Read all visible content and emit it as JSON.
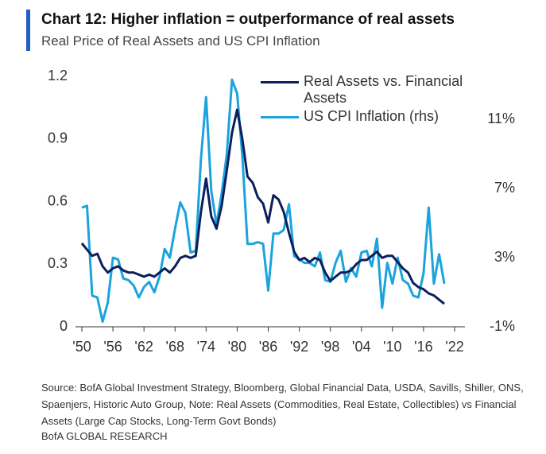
{
  "chart_data": {
    "type": "line",
    "title": "Chart 12: Higher inflation = outperformance of real assets",
    "subtitle": "Real Price of Real Assets and US CPI Inflation",
    "source": "Source: BofA Global Investment Strategy, Bloomberg, Global Financial Data, USDA, Savills, Shiller, ONS, Spaenjers, Historic Auto Group, Note: Real Assets (Commodities, Real Estate, Collectibles) vs Financial Assets (Large Cap Stocks, Long-Term Govt Bonds)",
    "footer": "BofA GLOBAL RESEARCH",
    "x": [
      1950,
      1951,
      1952,
      1953,
      1954,
      1955,
      1956,
      1957,
      1958,
      1959,
      1960,
      1961,
      1962,
      1963,
      1964,
      1965,
      1966,
      1967,
      1968,
      1969,
      1970,
      1971,
      1972,
      1973,
      1974,
      1975,
      1976,
      1977,
      1978,
      1979,
      1980,
      1981,
      1982,
      1983,
      1984,
      1985,
      1986,
      1987,
      1988,
      1989,
      1990,
      1991,
      1992,
      1993,
      1994,
      1995,
      1996,
      1997,
      1998,
      1999,
      2000,
      2001,
      2002,
      2003,
      2004,
      2005,
      2006,
      2007,
      2008,
      2009,
      2010,
      2011,
      2012,
      2013,
      2014,
      2015,
      2016,
      2017,
      2018,
      2019,
      2020
    ],
    "series": [
      {
        "name": "Real Assets vs. Financial Assets",
        "color": "#0b1f5c",
        "values": [
          0.4,
          0.37,
          0.34,
          0.35,
          0.29,
          0.26,
          0.28,
          0.29,
          0.27,
          0.26,
          0.26,
          0.25,
          0.24,
          0.25,
          0.24,
          0.26,
          0.28,
          0.26,
          0.29,
          0.33,
          0.34,
          0.33,
          0.34,
          0.55,
          0.71,
          0.53,
          0.47,
          0.58,
          0.75,
          0.93,
          1.04,
          0.9,
          0.72,
          0.69,
          0.62,
          0.59,
          0.5,
          0.63,
          0.61,
          0.55,
          0.45,
          0.36,
          0.32,
          0.33,
          0.31,
          0.33,
          0.32,
          0.26,
          0.22,
          0.24,
          0.26,
          0.26,
          0.27,
          0.3,
          0.32,
          0.32,
          0.34,
          0.36,
          0.33,
          0.34,
          0.34,
          0.31,
          0.28,
          0.26,
          0.21,
          0.19,
          0.18,
          0.16,
          0.15,
          0.13,
          0.11
        ]
      },
      {
        "name": "US CPI Inflation (rhs)",
        "color": "#1aa3dd",
        "axis": "y2",
        "values": [
          5.9,
          6.0,
          0.8,
          0.7,
          -0.7,
          0.4,
          3.0,
          2.9,
          1.8,
          1.7,
          1.4,
          0.7,
          1.3,
          1.6,
          1.0,
          1.9,
          3.5,
          3.0,
          4.7,
          6.2,
          5.6,
          3.3,
          3.4,
          8.7,
          12.3,
          6.9,
          4.9,
          6.7,
          9.0,
          13.3,
          12.5,
          8.9,
          3.8,
          3.8,
          3.9,
          3.8,
          1.1,
          4.4,
          4.4,
          4.6,
          6.1,
          3.1,
          2.9,
          2.7,
          2.7,
          2.5,
          3.3,
          1.7,
          1.6,
          2.7,
          3.4,
          1.6,
          2.4,
          1.9,
          3.3,
          3.4,
          2.5,
          4.1,
          0.1,
          2.7,
          1.5,
          3.0,
          1.7,
          1.5,
          0.8,
          0.7,
          2.1,
          5.9,
          1.5,
          3.2,
          1.5
        ]
      }
    ],
    "xlim": [
      1950,
      2022
    ],
    "xticks": [
      {
        "value": 1950,
        "label": "'50"
      },
      {
        "value": 1956,
        "label": "'56"
      },
      {
        "value": 1962,
        "label": "'62"
      },
      {
        "value": 1968,
        "label": "'68"
      },
      {
        "value": 1974,
        "label": "'74"
      },
      {
        "value": 1980,
        "label": "'80"
      },
      {
        "value": 1986,
        "label": "'86"
      },
      {
        "value": 1992,
        "label": "'92"
      },
      {
        "value": 1998,
        "label": "'98"
      },
      {
        "value": 2004,
        "label": "'04"
      },
      {
        "value": 2010,
        "label": "'10"
      },
      {
        "value": 2016,
        "label": "'16"
      },
      {
        "value": 2022,
        "label": "'22"
      }
    ],
    "ylim": [
      0,
      1.2
    ],
    "yticks": [
      0,
      0.3,
      0.6,
      0.9,
      1.2
    ],
    "y2lim": [
      -1,
      13.5
    ],
    "y2ticks": [
      {
        "value": -1,
        "label": "-1%"
      },
      {
        "value": 3,
        "label": "3%"
      },
      {
        "value": 7,
        "label": "7%"
      },
      {
        "value": 11,
        "label": "11%"
      }
    ],
    "grid": false
  }
}
